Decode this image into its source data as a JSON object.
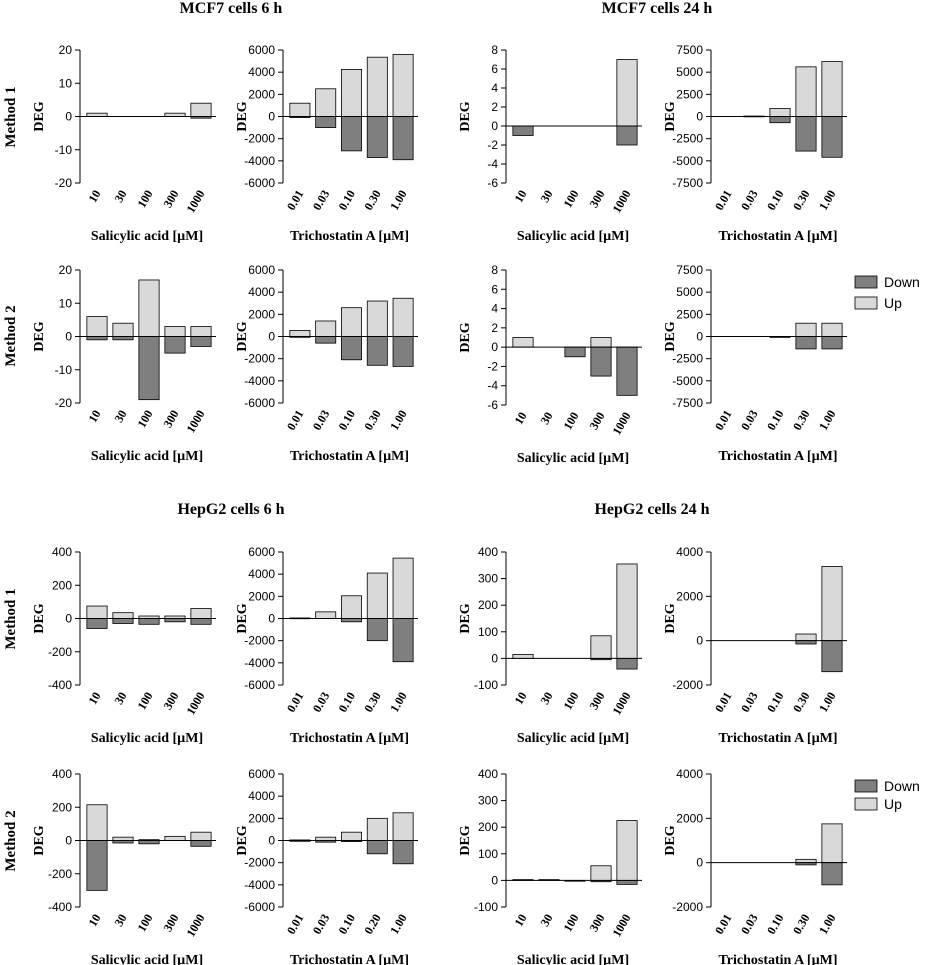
{
  "colors": {
    "down": "#7f7f7f",
    "up": "#d9d9d9",
    "stroke": "#000000"
  },
  "legend": {
    "down_label": "Down",
    "up_label": "Up"
  },
  "row_labels": {
    "method1": "Method 1",
    "method2": "Method 2"
  },
  "section_titles": {
    "mcf7_6h": "MCF7 cells 6 h",
    "mcf7_24h": "MCF7 cells 24 h",
    "hepg2_6h": "HepG2 cells 6 h",
    "hepg2_24h": "HepG2 cells 24 h"
  },
  "chart_data": [
    {
      "id": "mcf7-6h-m1-sa",
      "type": "bar",
      "cell": "MCF7",
      "time": "6 h",
      "method": "Method 1",
      "xlabel": "Salicylic acid [µM]",
      "ylabel": "DEG",
      "categories": [
        "10",
        "30",
        "100",
        "300",
        "1000"
      ],
      "series": [
        {
          "name": "Up",
          "values": [
            1,
            0,
            0,
            1,
            4
          ]
        },
        {
          "name": "Down",
          "values": [
            0,
            0,
            0,
            0,
            -0.5
          ]
        }
      ],
      "ylim": [
        -20,
        20
      ],
      "yticks": [
        -20,
        -10,
        0,
        10,
        20
      ],
      "ytick_labels": [
        "-20",
        "-10",
        "0",
        "10",
        "20"
      ]
    },
    {
      "id": "mcf7-6h-m1-tsa",
      "type": "bar",
      "cell": "MCF7",
      "time": "6 h",
      "method": "Method 1",
      "xlabel": "Trichostatin A [µM]",
      "ylabel": "DEG",
      "categories": [
        "0.01",
        "0.03",
        "0.10",
        "0.30",
        "1.00"
      ],
      "series": [
        {
          "name": "Up",
          "values": [
            1200,
            2500,
            4250,
            5350,
            5600
          ]
        },
        {
          "name": "Down",
          "values": [
            -100,
            -1000,
            -3100,
            -3700,
            -3900
          ]
        }
      ],
      "ylim": [
        -6000,
        6000
      ],
      "yticks": [
        -6000,
        -4000,
        -2000,
        0,
        2000,
        4000,
        6000
      ],
      "ytick_labels": [
        "-6000",
        "-4000",
        "-2000",
        "0",
        "2000",
        "4000",
        "6000"
      ]
    },
    {
      "id": "mcf7-24h-m1-sa",
      "type": "bar",
      "cell": "MCF7",
      "time": "24 h",
      "method": "Method 1",
      "xlabel": "Salicylic acid [µM]",
      "ylabel": "DEG",
      "categories": [
        "10",
        "30",
        "100",
        "300",
        "1000"
      ],
      "series": [
        {
          "name": "Up",
          "values": [
            0,
            0,
            0,
            0,
            7
          ]
        },
        {
          "name": "Down",
          "values": [
            -1,
            0,
            0,
            0,
            -2
          ]
        }
      ],
      "ylim": [
        -6,
        8
      ],
      "yticks": [
        -6,
        -4,
        -2,
        0,
        2,
        4,
        6,
        8
      ],
      "ytick_labels": [
        "-6",
        "-4",
        "-2",
        "0",
        "2",
        "4",
        "6",
        "8"
      ]
    },
    {
      "id": "mcf7-24h-m1-tsa",
      "type": "bar",
      "cell": "MCF7",
      "time": "24 h",
      "method": "Method 1",
      "xlabel": "Trichostatin A [µM]",
      "ylabel": "DEG",
      "categories": [
        "0.01",
        "0.03",
        "0.10",
        "0.30",
        "1.00"
      ],
      "series": [
        {
          "name": "Up",
          "values": [
            0,
            50,
            900,
            5600,
            6200
          ]
        },
        {
          "name": "Down",
          "values": [
            0,
            0,
            -700,
            -3900,
            -4600
          ]
        }
      ],
      "ylim": [
        -7500,
        7500
      ],
      "yticks": [
        -7500,
        -5000,
        -2500,
        0,
        2500,
        5000,
        7500
      ],
      "ytick_labels": [
        "-7500",
        "-5000",
        "-2500",
        "0",
        "2500",
        "5000",
        "7500"
      ]
    },
    {
      "id": "mcf7-6h-m2-sa",
      "type": "bar",
      "cell": "MCF7",
      "time": "6 h",
      "method": "Method 2",
      "xlabel": "Salicylic acid [µM]",
      "ylabel": "DEG",
      "categories": [
        "10",
        "30",
        "100",
        "300",
        "1000"
      ],
      "series": [
        {
          "name": "Up",
          "values": [
            6,
            4,
            17,
            3,
            3
          ]
        },
        {
          "name": "Down",
          "values": [
            -1,
            -1,
            -19,
            -5,
            -3
          ]
        }
      ],
      "ylim": [
        -20,
        20
      ],
      "yticks": [
        -20,
        -10,
        0,
        10,
        20
      ],
      "ytick_labels": [
        "-20",
        "-10",
        "0",
        "10",
        "20"
      ]
    },
    {
      "id": "mcf7-6h-m2-tsa",
      "type": "bar",
      "cell": "MCF7",
      "time": "6 h",
      "method": "Method 2",
      "xlabel": "Trichostatin A [µM]",
      "ylabel": "DEG",
      "categories": [
        "0.01",
        "0.03",
        "0.10",
        "0.30",
        "1.00"
      ],
      "series": [
        {
          "name": "Up",
          "values": [
            550,
            1400,
            2600,
            3200,
            3450
          ]
        },
        {
          "name": "Down",
          "values": [
            -50,
            -600,
            -2100,
            -2600,
            -2700
          ]
        }
      ],
      "ylim": [
        -6000,
        6000
      ],
      "yticks": [
        -6000,
        -4000,
        -2000,
        0,
        2000,
        4000,
        6000
      ],
      "ytick_labels": [
        "-6000",
        "-4000",
        "-2000",
        "0",
        "2000",
        "4000",
        "6000"
      ]
    },
    {
      "id": "mcf7-24h-m2-sa",
      "type": "bar",
      "cell": "MCF7",
      "time": "24 h",
      "method": "Method 2",
      "xlabel": "Salicylic acid [µM]",
      "ylabel": "DEG",
      "categories": [
        "10",
        "30",
        "100",
        "300",
        "1000"
      ],
      "series": [
        {
          "name": "Up",
          "values": [
            1,
            0,
            0,
            1,
            0
          ]
        },
        {
          "name": "Down",
          "values": [
            0,
            0,
            -1,
            -3,
            -5
          ]
        }
      ],
      "ylim": [
        -6,
        8
      ],
      "yticks": [
        -6,
        -4,
        -2,
        0,
        2,
        4,
        6,
        8
      ],
      "ytick_labels": [
        "-6",
        "-4",
        "-2",
        "0",
        "2",
        "4",
        "6",
        "8"
      ]
    },
    {
      "id": "mcf7-24h-m2-tsa",
      "type": "bar",
      "cell": "MCF7",
      "time": "24 h",
      "method": "Method 2",
      "xlabel": "Trichostatin A [µM]",
      "ylabel": "DEG",
      "categories": [
        "0.01",
        "0.03",
        "0.10",
        "0.30",
        "1.00"
      ],
      "series": [
        {
          "name": "Up",
          "values": [
            0,
            0,
            0,
            1500,
            1500
          ]
        },
        {
          "name": "Down",
          "values": [
            0,
            0,
            -100,
            -1400,
            -1400
          ]
        }
      ],
      "ylim": [
        -7500,
        7500
      ],
      "yticks": [
        -7500,
        -5000,
        -2500,
        0,
        2500,
        5000,
        7500
      ],
      "ytick_labels": [
        "-7500",
        "-5000",
        "-2500",
        "0",
        "2500",
        "5000",
        "7500"
      ]
    },
    {
      "id": "hepg2-6h-m1-sa",
      "type": "bar",
      "cell": "HepG2",
      "time": "6 h",
      "method": "Method 1",
      "xlabel": "Salicylic acid [µM]",
      "ylabel": "DEG",
      "categories": [
        "10",
        "30",
        "100",
        "300",
        "1000"
      ],
      "series": [
        {
          "name": "Up",
          "values": [
            75,
            35,
            15,
            15,
            60
          ]
        },
        {
          "name": "Down",
          "values": [
            -60,
            -30,
            -35,
            -20,
            -35
          ]
        }
      ],
      "ylim": [
        -400,
        400
      ],
      "yticks": [
        -400,
        -200,
        0,
        200,
        400
      ],
      "ytick_labels": [
        "-400",
        "-200",
        "0",
        "200",
        "400"
      ]
    },
    {
      "id": "hepg2-6h-m1-tsa",
      "type": "bar",
      "cell": "HepG2",
      "time": "6 h",
      "method": "Method 1",
      "xlabel": "Trichostatin A [µM]",
      "ylabel": "DEG",
      "categories": [
        "0.01",
        "0.03",
        "0.10",
        "0.30",
        "1.00"
      ],
      "series": [
        {
          "name": "Up",
          "values": [
            50,
            600,
            2050,
            4100,
            5450
          ]
        },
        {
          "name": "Down",
          "values": [
            0,
            0,
            -300,
            -2000,
            -3900
          ]
        }
      ],
      "ylim": [
        -6000,
        6000
      ],
      "yticks": [
        -6000,
        -4000,
        -2000,
        0,
        2000,
        4000,
        6000
      ],
      "ytick_labels": [
        "-6000",
        "-4000",
        "-2000",
        "0",
        "2000",
        "4000",
        "6000"
      ]
    },
    {
      "id": "hepg2-24h-m1-sa",
      "type": "bar",
      "cell": "HepG2",
      "time": "24 h",
      "method": "Method 1",
      "xlabel": "Salicylic acid [µM]",
      "ylabel": "DEG",
      "categories": [
        "10",
        "30",
        "100",
        "300",
        "1000"
      ],
      "series": [
        {
          "name": "Up",
          "values": [
            15,
            0,
            0,
            85,
            355
          ]
        },
        {
          "name": "Down",
          "values": [
            0,
            0,
            0,
            -5,
            -40
          ]
        }
      ],
      "ylim": [
        -100,
        400
      ],
      "yticks": [
        -100,
        0,
        100,
        200,
        300,
        400
      ],
      "ytick_labels": [
        "-100",
        "0",
        "100",
        "200",
        "300",
        "400"
      ]
    },
    {
      "id": "hepg2-24h-m1-tsa",
      "type": "bar",
      "cell": "HepG2",
      "time": "24 h",
      "method": "Method 1",
      "xlabel": "Trichostatin A [µM]",
      "ylabel": "DEG",
      "categories": [
        "0.01",
        "0.03",
        "0.10",
        "0.30",
        "1.00"
      ],
      "series": [
        {
          "name": "Up",
          "values": [
            0,
            0,
            0,
            300,
            3350
          ]
        },
        {
          "name": "Down",
          "values": [
            0,
            0,
            0,
            -150,
            -1400
          ]
        }
      ],
      "ylim": [
        -2000,
        4000
      ],
      "yticks": [
        -2000,
        0,
        2000,
        4000
      ],
      "ytick_labels": [
        "-2000",
        "0",
        "2000",
        "4000"
      ]
    },
    {
      "id": "hepg2-6h-m2-sa",
      "type": "bar",
      "cell": "HepG2",
      "time": "6 h",
      "method": "Method 2",
      "xlabel": "Salicylic acid [µM]",
      "ylabel": "DEG",
      "categories": [
        "10",
        "30",
        "100",
        "300",
        "1000"
      ],
      "series": [
        {
          "name": "Up",
          "values": [
            215,
            20,
            5,
            25,
            50
          ]
        },
        {
          "name": "Down",
          "values": [
            -300,
            -15,
            -20,
            0,
            -35
          ]
        }
      ],
      "ylim": [
        -400,
        400
      ],
      "yticks": [
        -400,
        -200,
        0,
        200,
        400
      ],
      "ytick_labels": [
        "-400",
        "-200",
        "0",
        "200",
        "400"
      ]
    },
    {
      "id": "hepg2-6h-m2-tsa",
      "type": "bar",
      "cell": "HepG2",
      "time": "6 h",
      "method": "Method 2",
      "xlabel": "Trichostatin A [µM]",
      "ylabel": "DEG",
      "categories": [
        "0.01",
        "0.03",
        "0.10",
        "0.20",
        "1.00"
      ],
      "series": [
        {
          "name": "Up",
          "values": [
            50,
            300,
            750,
            2000,
            2500
          ]
        },
        {
          "name": "Down",
          "values": [
            -50,
            -150,
            -100,
            -1200,
            -2100
          ]
        }
      ],
      "ylim": [
        -6000,
        6000
      ],
      "yticks": [
        -6000,
        -4000,
        -2000,
        0,
        2000,
        4000,
        6000
      ],
      "ytick_labels": [
        "-6000",
        "-4000",
        "-2000",
        "0",
        "2000",
        "4000",
        "6000"
      ]
    },
    {
      "id": "hepg2-24h-m2-sa",
      "type": "bar",
      "cell": "HepG2",
      "time": "24 h",
      "method": "Method 2",
      "xlabel": "Salicylic acid [µM]",
      "ylabel": "DEG",
      "categories": [
        "10",
        "30",
        "100",
        "300",
        "1000"
      ],
      "series": [
        {
          "name": "Up",
          "values": [
            3,
            3,
            0,
            55,
            225
          ]
        },
        {
          "name": "Down",
          "values": [
            0,
            0,
            -3,
            -5,
            -15
          ]
        }
      ],
      "ylim": [
        -100,
        400
      ],
      "yticks": [
        -100,
        0,
        100,
        200,
        300,
        400
      ],
      "ytick_labels": [
        "-100",
        "0",
        "100",
        "200",
        "300",
        "400"
      ]
    },
    {
      "id": "hepg2-24h-m2-tsa",
      "type": "bar",
      "cell": "HepG2",
      "time": "24 h",
      "method": "Method 2",
      "xlabel": "Trichostatin A [µM]",
      "ylabel": "DEG",
      "categories": [
        "0.01",
        "0.03",
        "0.10",
        "0.30",
        "1.00"
      ],
      "series": [
        {
          "name": "Up",
          "values": [
            0,
            0,
            0,
            150,
            1750
          ]
        },
        {
          "name": "Down",
          "values": [
            0,
            0,
            0,
            -100,
            -1000
          ]
        }
      ],
      "ylim": [
        -2000,
        4000
      ],
      "yticks": [
        -2000,
        0,
        2000,
        4000
      ],
      "ytick_labels": [
        "-2000",
        "0",
        "2000",
        "4000"
      ]
    }
  ]
}
